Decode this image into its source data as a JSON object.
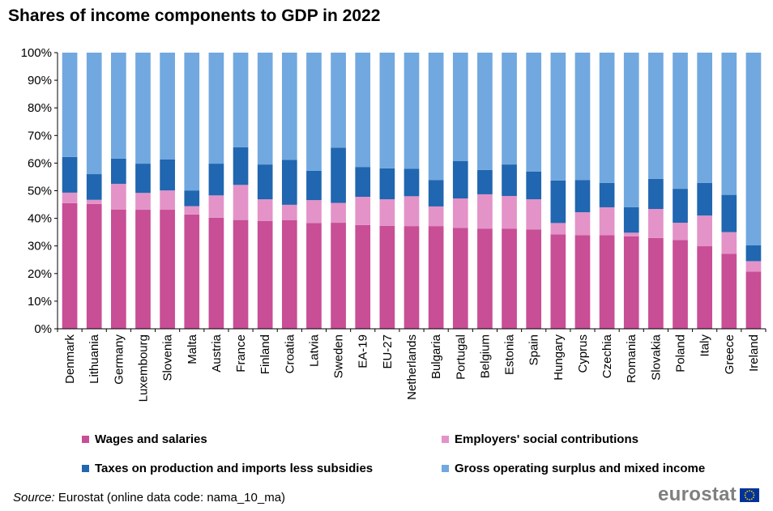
{
  "title": "Shares of income components to GDP in 2022",
  "source": {
    "label": "Source:",
    "text": " Eurostat (online data code: nama_10_ma)"
  },
  "logo": {
    "text": "eurostat"
  },
  "chart_data": {
    "type": "bar",
    "stacked": true,
    "title": "Shares of income components to GDP in 2022",
    "ylim": [
      0,
      100
    ],
    "yticks": [
      "0%",
      "10%",
      "20%",
      "30%",
      "40%",
      "50%",
      "60%",
      "70%",
      "80%",
      "90%",
      "100%"
    ],
    "grid": false,
    "legend_position": "bottom",
    "categories": [
      "Denmark",
      "Lithuania",
      "Germany",
      "Luxembourg",
      "Slovenia",
      "Malta",
      "Austria",
      "France",
      "Finland",
      "Croatia",
      "Latvia",
      "Sweden",
      "EA-19",
      "EU-27",
      "Netherlands",
      "Bulgaria",
      "Portugal",
      "Belgium",
      "Estonia",
      "Spain",
      "Hungary",
      "Cyprus",
      "Czechia",
      "Romania",
      "Slovakia",
      "Poland",
      "Italy",
      "Greece",
      "Ireland"
    ],
    "series": [
      {
        "name": "Wages and salaries",
        "color": "#c84e96",
        "values": [
          45.5,
          45.2,
          43.2,
          43.1,
          43.1,
          41.4,
          40.2,
          39.4,
          39.0,
          39.3,
          38.3,
          38.4,
          37.6,
          37.3,
          37.2,
          37.2,
          36.5,
          36.3,
          36.3,
          36.0,
          34.2,
          33.9,
          33.9,
          33.5,
          32.9,
          32.1,
          29.9,
          27.2,
          20.7
        ]
      },
      {
        "name": "Employers' social contributions",
        "color": "#e393c8",
        "values": [
          3.8,
          1.5,
          9.3,
          6.1,
          7.0,
          3.0,
          8.1,
          12.7,
          7.9,
          5.6,
          8.3,
          7.2,
          10.2,
          9.6,
          10.8,
          7.1,
          10.7,
          12.4,
          11.8,
          10.9,
          4.1,
          8.3,
          10.1,
          1.3,
          10.5,
          6.3,
          11.1,
          7.8,
          3.8
        ]
      },
      {
        "name": "Taxes on production and imports less subsidies",
        "color": "#2066b0",
        "values": [
          12.9,
          9.3,
          9.1,
          10.6,
          11.2,
          5.7,
          11.5,
          13.6,
          12.6,
          16.3,
          10.6,
          20.0,
          10.8,
          11.2,
          10.0,
          9.6,
          13.5,
          8.8,
          11.4,
          10.0,
          15.4,
          11.7,
          8.8,
          9.2,
          10.9,
          12.3,
          11.8,
          13.5,
          5.7
        ]
      },
      {
        "name": "Gross operating surplus and mixed income",
        "color": "#71a8df",
        "values": [
          37.8,
          44.0,
          38.4,
          40.2,
          38.7,
          49.9,
          40.2,
          34.3,
          40.5,
          38.8,
          42.8,
          34.4,
          41.4,
          41.9,
          42.0,
          46.1,
          39.3,
          42.5,
          40.5,
          43.1,
          46.3,
          46.1,
          47.2,
          56.0,
          45.7,
          49.3,
          47.2,
          51.5,
          69.8
        ]
      }
    ]
  }
}
